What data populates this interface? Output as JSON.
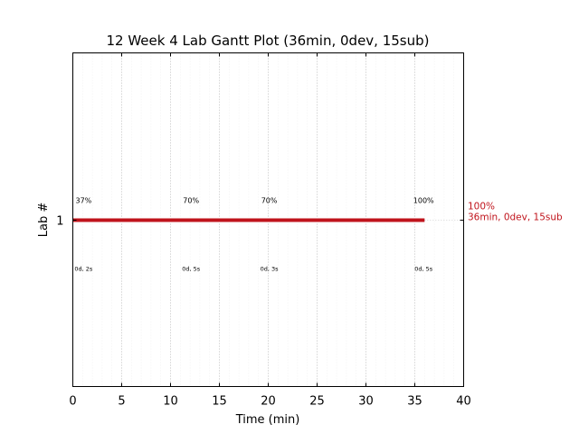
{
  "chart_data": {
    "type": "gantt",
    "title": "12 Week 4 Lab Gantt Plot (36min, 0dev, 15sub)",
    "xlabel": "Time (min)",
    "ylabel": "Lab #",
    "xlim": [
      0,
      40
    ],
    "xticks": [
      0,
      5,
      10,
      15,
      20,
      25,
      30,
      35,
      40
    ],
    "lanes": [
      {
        "label": "1",
        "start": 0,
        "end": 36,
        "color": "#c0141c",
        "end_label_pct": "100%",
        "end_label_text": "36min, 0dev, 15sub",
        "milestones": [
          {
            "x": 1.1,
            "score": "37%",
            "info": "0d, 2s"
          },
          {
            "x": 12.1,
            "score": "70%",
            "info": "0d, 5s"
          },
          {
            "x": 20.1,
            "score": "70%",
            "info": "0d, 3s"
          },
          {
            "x": 35.9,
            "score": "100%",
            "info": "0d, 5s"
          }
        ]
      }
    ],
    "grid": true,
    "end_label_color": "#c0141c"
  }
}
